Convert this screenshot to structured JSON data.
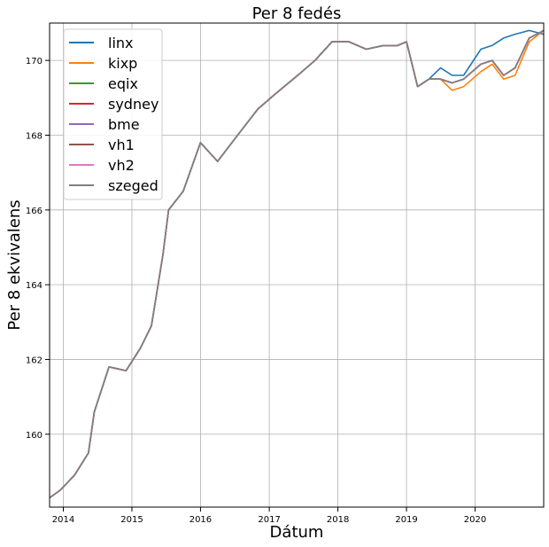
{
  "chart_data": {
    "type": "line",
    "title": "Per 8 fedés",
    "xlabel": "Dátum",
    "ylabel": "Per 8 ekvivalens",
    "xlim": [
      "2013-10-20",
      "2020-12-31"
    ],
    "ylim": [
      158.05,
      171.0
    ],
    "grid": true,
    "legend_position": "top-left",
    "x_ticks": [
      "2014",
      "2015",
      "2016",
      "2017",
      "2018",
      "2019",
      "2020"
    ],
    "y_ticks": [
      160,
      162,
      164,
      166,
      168,
      170
    ],
    "x_anchor_dates": [
      "2013-10-20",
      "2013-12-15",
      "2014-03-01",
      "2014-05-15",
      "2014-06-15",
      "2014-09-01",
      "2014-12-01",
      "2015-02-15",
      "2015-04-15",
      "2015-06-15",
      "2015-07-15",
      "2015-10-01",
      "2016-01-01",
      "2016-04-01",
      "2016-08-01",
      "2016-11-01",
      "2017-02-01",
      "2017-06-01",
      "2017-09-01",
      "2017-12-01",
      "2018-03-01",
      "2018-06-01",
      "2018-09-01",
      "2018-11-15",
      "2019-01-01",
      "2019-03-01",
      "2019-05-01",
      "2019-07-01",
      "2019-09-01",
      "2019-11-01",
      "2020-02-01",
      "2020-04-01",
      "2020-06-01",
      "2020-08-01",
      "2020-10-15",
      "2020-12-31"
    ],
    "series": [
      {
        "name": "linx",
        "color": "#1f77b4",
        "offset": 0.15,
        "values": [
          158.3,
          158.5,
          158.9,
          159.5,
          160.6,
          161.8,
          161.7,
          162.3,
          162.9,
          164.8,
          166.0,
          166.5,
          167.8,
          167.3,
          168.1,
          168.7,
          169.1,
          169.6,
          170.0,
          170.5,
          170.5,
          170.3,
          170.4,
          170.4,
          170.5,
          169.3,
          169.5,
          169.8,
          169.6,
          169.6,
          170.3,
          170.4,
          170.6,
          170.7,
          170.8,
          170.7
        ]
      },
      {
        "name": "kixp",
        "color": "#ff7f0e",
        "offset": -0.2,
        "values": [
          158.3,
          158.5,
          158.9,
          159.5,
          160.6,
          161.8,
          161.7,
          162.3,
          162.9,
          164.8,
          166.0,
          166.5,
          167.8,
          167.3,
          168.1,
          168.7,
          169.1,
          169.6,
          170.0,
          170.5,
          170.5,
          170.3,
          170.4,
          170.4,
          170.5,
          169.3,
          169.5,
          169.5,
          169.2,
          169.3,
          169.7,
          169.9,
          169.5,
          169.6,
          170.5,
          170.8
        ]
      },
      {
        "name": "eqix",
        "color": "#2ca02c",
        "offset": 0.0,
        "values": [
          158.3,
          158.5,
          158.9,
          159.5,
          160.6,
          161.8,
          161.7,
          162.3,
          162.9,
          164.8,
          166.0,
          166.5,
          167.8,
          167.3,
          168.1,
          168.7,
          169.1,
          169.6,
          170.0,
          170.5,
          170.5,
          170.3,
          170.4,
          170.4,
          170.5,
          169.3,
          169.5,
          169.5,
          169.4,
          169.5,
          169.9,
          170.0,
          169.6,
          169.8,
          170.6,
          170.8
        ]
      },
      {
        "name": "sydney",
        "color": "#d62728",
        "offset": 0.1,
        "values": [
          158.3,
          158.5,
          158.9,
          159.5,
          160.6,
          161.8,
          161.7,
          162.3,
          162.9,
          164.8,
          166.0,
          166.5,
          167.8,
          167.3,
          168.1,
          168.7,
          169.1,
          169.6,
          170.0,
          170.5,
          170.5,
          170.3,
          170.4,
          170.4,
          170.5,
          169.3,
          169.5,
          169.5,
          169.4,
          169.5,
          169.9,
          170.0,
          169.6,
          169.8,
          170.6,
          170.8
        ]
      },
      {
        "name": "bme",
        "color": "#9467bd",
        "offset": 0.05,
        "values": [
          158.3,
          158.5,
          158.9,
          159.5,
          160.6,
          161.8,
          161.7,
          162.3,
          162.9,
          164.8,
          166.0,
          166.5,
          167.8,
          167.3,
          168.1,
          168.7,
          169.1,
          169.6,
          170.0,
          170.5,
          170.5,
          170.3,
          170.4,
          170.4,
          170.5,
          169.3,
          169.5,
          169.5,
          169.4,
          169.5,
          169.9,
          170.0,
          169.6,
          169.8,
          170.6,
          170.8
        ]
      },
      {
        "name": "vh1",
        "color": "#8c564b",
        "offset": 0.0,
        "values": [
          158.3,
          158.5,
          158.9,
          159.5,
          160.6,
          161.8,
          161.7,
          162.3,
          162.9,
          164.8,
          166.0,
          166.5,
          167.8,
          167.3,
          168.1,
          168.7,
          169.1,
          169.6,
          170.0,
          170.5,
          170.5,
          170.3,
          170.4,
          170.4,
          170.5,
          169.3,
          169.5,
          169.5,
          169.4,
          169.5,
          169.9,
          170.0,
          169.6,
          169.8,
          170.6,
          170.8
        ]
      },
      {
        "name": "vh2",
        "color": "#e377c2",
        "offset": -0.05,
        "values": [
          158.3,
          158.5,
          158.9,
          159.5,
          160.6,
          161.8,
          161.7,
          162.3,
          162.9,
          164.8,
          166.0,
          166.5,
          167.8,
          167.3,
          168.1,
          168.7,
          169.1,
          169.6,
          170.0,
          170.5,
          170.5,
          170.3,
          170.4,
          170.4,
          170.5,
          169.3,
          169.5,
          169.5,
          169.4,
          169.5,
          169.9,
          170.0,
          169.6,
          169.8,
          170.6,
          170.8
        ]
      },
      {
        "name": "szeged",
        "color": "#7f7f7f",
        "offset": -0.1,
        "values": [
          158.3,
          158.5,
          158.9,
          159.5,
          160.6,
          161.8,
          161.7,
          162.3,
          162.9,
          164.8,
          166.0,
          166.5,
          167.8,
          167.3,
          168.1,
          168.7,
          169.1,
          169.6,
          170.0,
          170.5,
          170.5,
          170.3,
          170.4,
          170.4,
          170.5,
          169.3,
          169.5,
          169.5,
          169.4,
          169.5,
          169.9,
          170.0,
          169.6,
          169.8,
          170.6,
          170.8
        ]
      }
    ]
  }
}
